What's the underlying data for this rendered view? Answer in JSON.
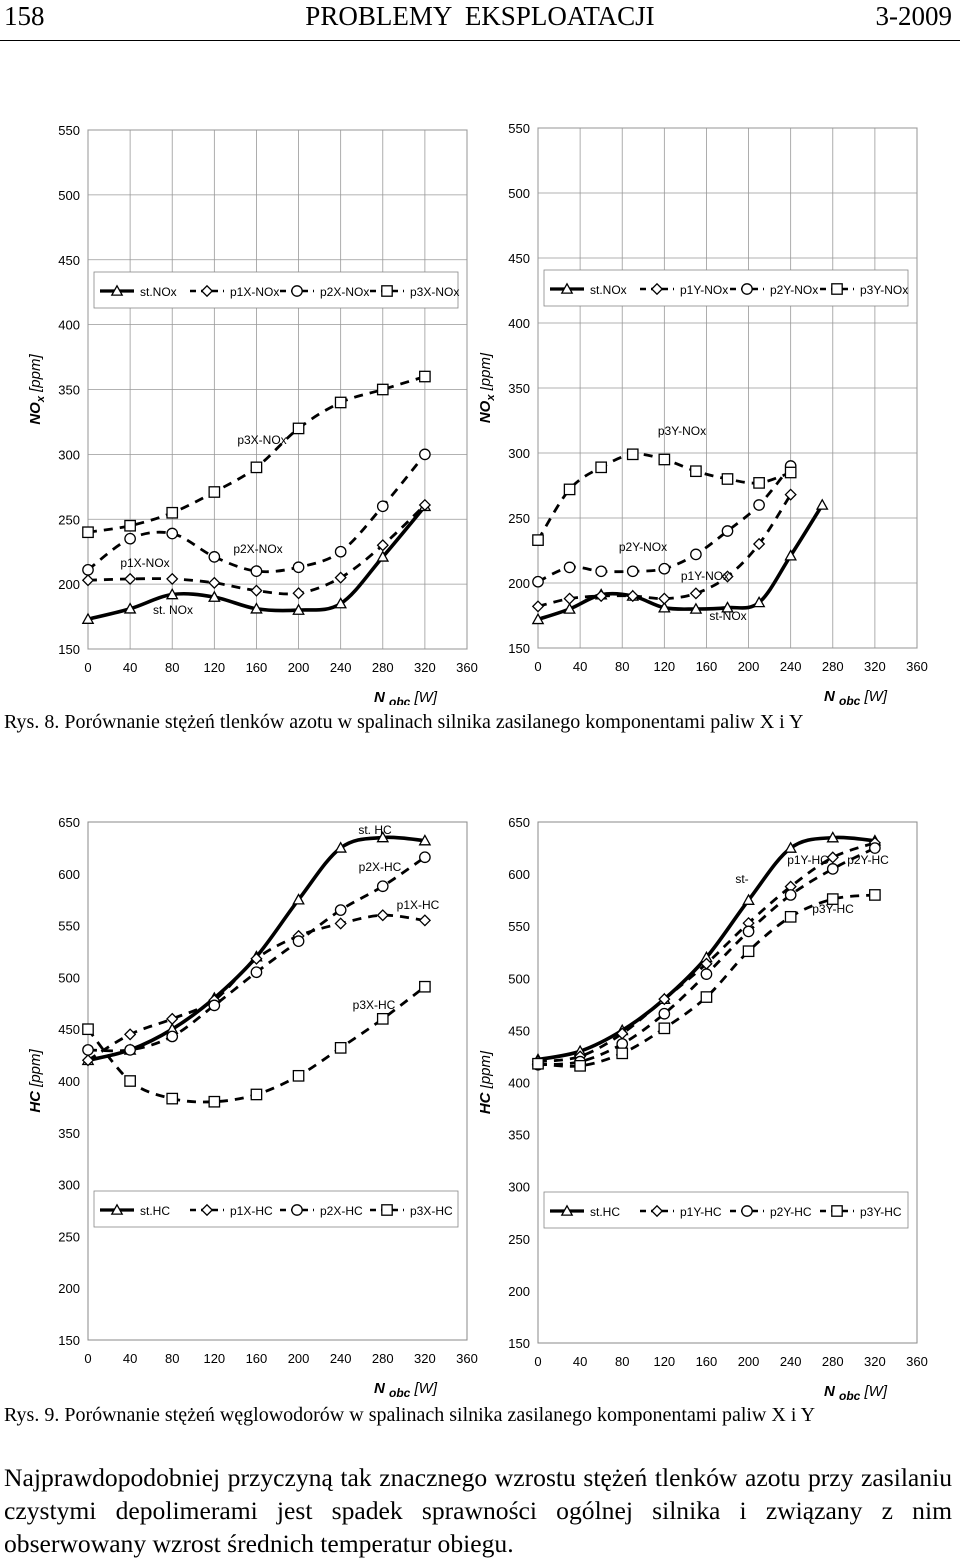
{
  "header": {
    "page_number": "158",
    "journal": "PROBLEMY  EKSPLOATACJI",
    "issue": "3-2009"
  },
  "captions": {
    "fig8": "Rys. 8. Porównanie stężeń tlenków azotu w spalinach silnika zasilanego komponentami paliw X i Y",
    "fig9": "Rys. 9. Porównanie stężeń węglowodorów w spalinach silnika zasilanego komponentami paliw X i Y"
  },
  "paragraph": "Najprawdopodobniej przyczyną tak znacznego wzrostu stężeń tlenków azotu przy zasilaniu czystymi depolimerami jest spadek sprawności ogólnej silnika i związany z nim obserwowany wzrost średnich temperatur obiegu.",
  "chart_data": [
    {
      "id": "nox_x",
      "type": "line",
      "ylabel": "NOx [ppm]",
      "xlabel_main": "N",
      "xlabel_sub": "obc",
      "xlabel_unit": "[W]",
      "xlim": [
        0,
        360
      ],
      "ylim": [
        150,
        550
      ],
      "xticks": [
        0,
        40,
        80,
        120,
        160,
        200,
        240,
        280,
        320,
        360
      ],
      "yticks": [
        150,
        200,
        250,
        300,
        350,
        400,
        450,
        500,
        550
      ],
      "grid": true,
      "legend_position": "top",
      "x": [
        0,
        40,
        80,
        120,
        160,
        200,
        240,
        280,
        320,
        360
      ],
      "series": [
        {
          "name": "st.NOx",
          "marker": "triangle",
          "style": "solid",
          "values": [
            173,
            181,
            192,
            190,
            181,
            180,
            185,
            221,
            260,
            null
          ]
        },
        {
          "name": "p1X-NOx",
          "marker": "diamond",
          "style": "dashed",
          "values": [
            203,
            204,
            204,
            201,
            195,
            193,
            205,
            230,
            261,
            null
          ]
        },
        {
          "name": "p2X-NOx",
          "marker": "circle",
          "style": "dashed",
          "values": [
            211,
            235,
            239,
            221,
            210,
            213,
            225,
            260,
            300,
            null
          ]
        },
        {
          "name": "p3X-NOx",
          "marker": "square",
          "style": "dashed",
          "values": [
            240,
            245,
            255,
            271,
            290,
            320,
            340,
            350,
            360,
            null
          ]
        }
      ],
      "annotations": [
        "p1X-NOx",
        "p2X-NOx",
        "p3X-NOx",
        "st. NOx"
      ]
    },
    {
      "id": "nox_y",
      "type": "line",
      "ylabel": "NOx [ppm]",
      "xlabel_main": "N",
      "xlabel_sub": "obc",
      "xlabel_unit": "[W]",
      "xlim": [
        0,
        360
      ],
      "ylim": [
        150,
        550
      ],
      "xticks": [
        0,
        40,
        80,
        120,
        160,
        200,
        240,
        280,
        320,
        360
      ],
      "yticks": [
        150,
        200,
        250,
        300,
        350,
        400,
        450,
        500,
        550
      ],
      "grid": true,
      "legend_position": "top",
      "x": [
        0,
        30,
        60,
        90,
        120,
        150,
        180,
        210,
        240,
        270,
        300,
        330
      ],
      "series": [
        {
          "name": "st.NOx",
          "marker": "triangle",
          "style": "solid",
          "values": [
            172,
            180,
            191,
            190,
            181,
            180,
            181,
            185,
            221,
            260,
            null,
            null
          ]
        },
        {
          "name": "p1Y-NOx",
          "marker": "diamond",
          "style": "dashed",
          "values": [
            182,
            188,
            190,
            190,
            188,
            192,
            205,
            230,
            268,
            null,
            null,
            null
          ]
        },
        {
          "name": "p2Y-NOx",
          "marker": "circle",
          "style": "dashed",
          "values": [
            201,
            212,
            209,
            209,
            211,
            222,
            240,
            260,
            290,
            null,
            null,
            null
          ]
        },
        {
          "name": "p3Y-NOx",
          "marker": "square",
          "style": "dashed",
          "values": [
            233,
            272,
            289,
            299,
            295,
            286,
            280,
            277,
            285,
            null,
            null,
            null
          ]
        }
      ],
      "annotations": [
        "p3Y-NOx",
        "p2Y-NOx",
        "p1Y-NOx",
        "st-NOx"
      ]
    },
    {
      "id": "hc_x",
      "type": "line",
      "ylabel": "HC [ppm]",
      "xlabel_main": "N",
      "xlabel_sub": "obc",
      "xlabel_unit": "[W]",
      "xlim": [
        0,
        360
      ],
      "ylim": [
        150,
        650
      ],
      "xticks": [
        0,
        40,
        80,
        120,
        160,
        200,
        240,
        280,
        320,
        360
      ],
      "yticks": [
        150,
        200,
        250,
        300,
        350,
        400,
        450,
        500,
        550,
        600,
        650
      ],
      "grid": false,
      "legend_position": "bottom",
      "x": [
        0,
        40,
        80,
        120,
        160,
        200,
        240,
        280,
        320,
        360
      ],
      "series": [
        {
          "name": "st.HC",
          "marker": "triangle",
          "style": "solid",
          "values": [
            420,
            430,
            450,
            480,
            520,
            575,
            625,
            635,
            632,
            null
          ]
        },
        {
          "name": "p1X-HC",
          "marker": "diamond",
          "style": "dashed",
          "values": [
            420,
            445,
            460,
            478,
            518,
            540,
            552,
            560,
            555,
            null
          ]
        },
        {
          "name": "p2X-HC",
          "marker": "circle",
          "style": "dashed",
          "values": [
            430,
            430,
            443,
            473,
            505,
            535,
            565,
            588,
            616,
            null
          ]
        },
        {
          "name": "p3X-HC",
          "marker": "square",
          "style": "dashed",
          "values": [
            450,
            400,
            383,
            380,
            387,
            405,
            432,
            460,
            491,
            null
          ]
        }
      ],
      "annotations": [
        "st. HC",
        "p2X-HC",
        "p1X-HC",
        "p3X-HC"
      ]
    },
    {
      "id": "hc_y",
      "type": "line",
      "ylabel": "HC [ppm]",
      "xlabel_main": "N",
      "xlabel_sub": "obc",
      "xlabel_unit": "[W]",
      "xlim": [
        0,
        360
      ],
      "ylim": [
        150,
        650
      ],
      "xticks": [
        0,
        40,
        80,
        120,
        160,
        200,
        240,
        280,
        320,
        360
      ],
      "yticks": [
        150,
        200,
        250,
        300,
        350,
        400,
        450,
        500,
        550,
        600,
        650
      ],
      "grid": false,
      "legend_position": "bottom",
      "x": [
        0,
        40,
        80,
        120,
        160,
        200,
        240,
        280,
        320,
        360
      ],
      "series": [
        {
          "name": "st.HC",
          "marker": "triangle",
          "style": "solid",
          "values": [
            422,
            430,
            450,
            480,
            520,
            575,
            625,
            635,
            632,
            null
          ]
        },
        {
          "name": "p1Y-HC",
          "marker": "diamond",
          "style": "dashed",
          "values": [
            420,
            425,
            447,
            480,
            514,
            553,
            588,
            616,
            630,
            null
          ]
        },
        {
          "name": "p2Y-HC",
          "marker": "circle",
          "style": "dashed",
          "values": [
            417,
            420,
            437,
            466,
            504,
            545,
            580,
            605,
            625,
            null
          ]
        },
        {
          "name": "p3Y-HC",
          "marker": "square",
          "style": "dashed",
          "values": [
            418,
            416,
            428,
            452,
            482,
            526,
            559,
            576,
            580,
            null
          ]
        }
      ],
      "annotations": [
        "st-",
        "p1Y-HC",
        "p2Y-HC",
        "p3Y-HC"
      ]
    }
  ]
}
